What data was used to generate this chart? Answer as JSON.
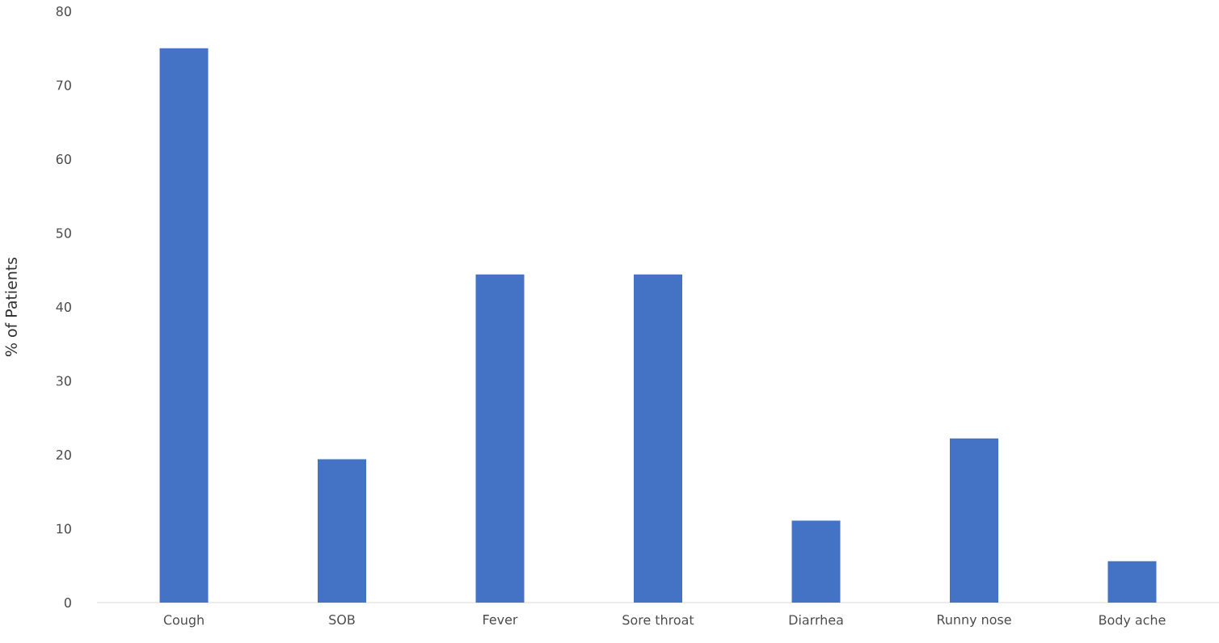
{
  "chart_data": {
    "type": "bar",
    "ylabel": "% of Patients",
    "categories": [
      "Cough",
      "SOB",
      "Fever",
      "Sore throat",
      "Diarrhea",
      "Runny nose",
      "Body ache"
    ],
    "values": [
      75,
      19.4,
      44.4,
      44.4,
      11.1,
      22.2,
      5.6
    ],
    "color": "#4472c4",
    "ylim": [
      0,
      80
    ],
    "yticks": [
      0,
      10,
      20,
      30,
      40,
      50,
      60,
      70,
      80
    ]
  }
}
